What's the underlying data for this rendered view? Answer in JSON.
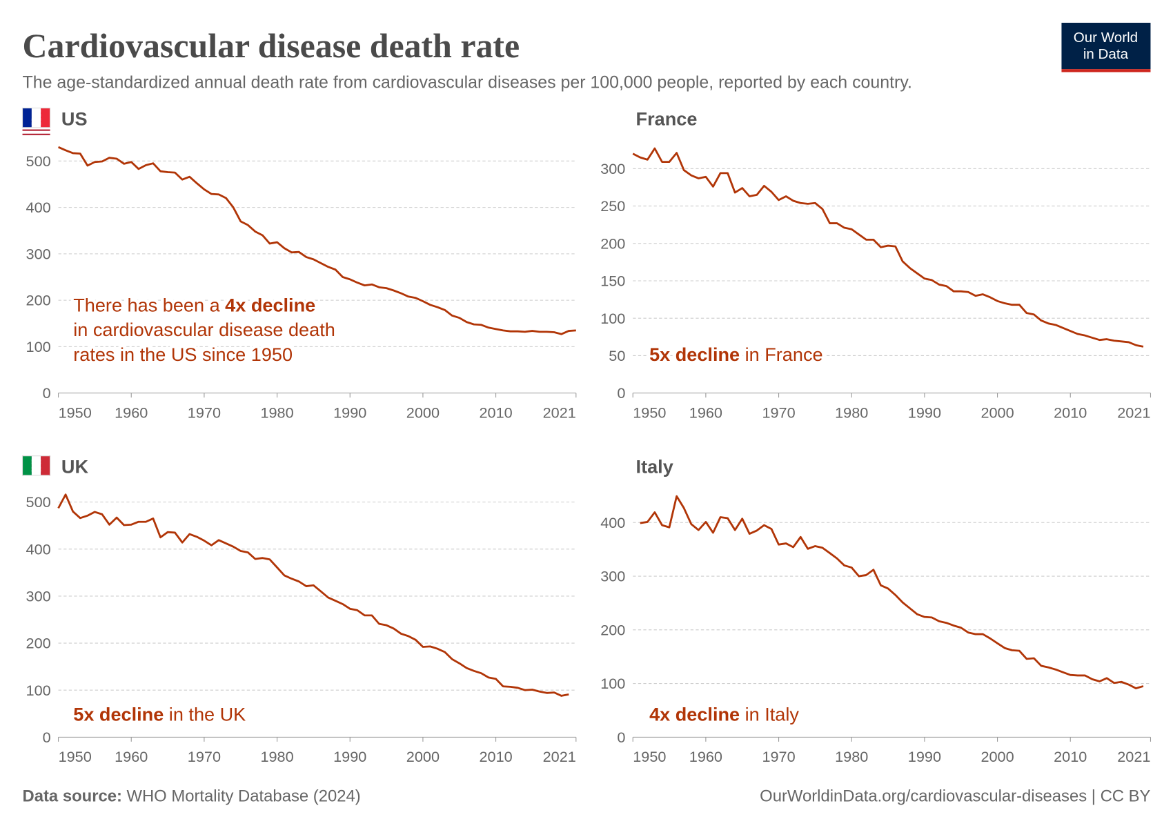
{
  "header": {
    "title": "Cardiovascular disease death rate",
    "subtitle": "The age-standardized annual death rate from cardiovascular diseases per 100,000 people, reported by each country.",
    "logo": [
      "Our World",
      "in Data"
    ]
  },
  "footer": {
    "source_label": "Data source:",
    "source": "WHO Mortality Database (2024)",
    "url": "OurWorldinData.org/cardiovascular-diseases | CC BY"
  },
  "chart_data": [
    {
      "type": "line",
      "title": "US",
      "color": "#b13507",
      "grid": true,
      "xlim": [
        1950,
        2021
      ],
      "xticks": [
        1950,
        1960,
        1970,
        1980,
        1990,
        2000,
        2010,
        2021
      ],
      "ylim": [
        0,
        540
      ],
      "yticks": [
        0,
        100,
        200,
        300,
        400,
        500
      ],
      "x": [
        1950,
        1951,
        1952,
        1953,
        1954,
        1955,
        1956,
        1957,
        1958,
        1959,
        1960,
        1961,
        1962,
        1963,
        1964,
        1965,
        1966,
        1967,
        1968,
        1969,
        1970,
        1971,
        1972,
        1973,
        1974,
        1975,
        1976,
        1977,
        1978,
        1979,
        1980,
        1981,
        1982,
        1983,
        1984,
        1985,
        1986,
        1987,
        1988,
        1989,
        1990,
        1991,
        1992,
        1993,
        1994,
        1995,
        1996,
        1997,
        1998,
        1999,
        2000,
        2001,
        2002,
        2003,
        2004,
        2005,
        2006,
        2007,
        2008,
        2009,
        2010,
        2011,
        2012,
        2013,
        2014,
        2015,
        2016,
        2017,
        2018,
        2019,
        2020,
        2021
      ],
      "values": [
        530,
        523,
        517,
        516,
        490,
        498,
        499,
        507,
        505,
        494,
        498,
        483,
        491,
        495,
        478,
        476,
        475,
        460,
        466,
        452,
        439,
        429,
        428,
        420,
        400,
        370,
        362,
        348,
        340,
        322,
        325,
        312,
        303,
        304,
        293,
        288,
        280,
        272,
        266,
        250,
        245,
        238,
        232,
        234,
        228,
        226,
        221,
        215,
        208,
        205,
        198,
        190,
        185,
        179,
        167,
        162,
        153,
        148,
        147,
        141,
        138,
        135,
        133,
        133,
        132,
        134,
        132,
        132,
        131,
        127,
        134,
        135
      ],
      "annotation": [
        [
          {
            "text": "There has been a ",
            "bold": false
          },
          {
            "text": "4x decline",
            "bold": true
          }
        ],
        [
          {
            "text": "in cardiovascular disease death",
            "bold": false
          }
        ],
        [
          {
            "text": "rates in the US since 1950",
            "bold": false
          }
        ]
      ]
    },
    {
      "type": "line",
      "title": "France",
      "color": "#b13507",
      "grid": true,
      "xlim": [
        1950,
        2021
      ],
      "xticks": [
        1950,
        1960,
        1970,
        1980,
        1990,
        2000,
        2010,
        2021
      ],
      "ylim": [
        0,
        330
      ],
      "yticks": [
        0,
        50,
        100,
        150,
        200,
        250,
        300
      ],
      "x": [
        1950,
        1951,
        1952,
        1953,
        1954,
        1955,
        1956,
        1957,
        1958,
        1959,
        1960,
        1961,
        1962,
        1963,
        1964,
        1965,
        1966,
        1967,
        1968,
        1969,
        1970,
        1971,
        1972,
        1973,
        1974,
        1975,
        1976,
        1977,
        1978,
        1979,
        1980,
        1981,
        1982,
        1983,
        1984,
        1985,
        1986,
        1987,
        1988,
        1989,
        1990,
        1991,
        1992,
        1993,
        1994,
        1995,
        1996,
        1997,
        1998,
        1999,
        2000,
        2001,
        2002,
        2003,
        2004,
        2005,
        2006,
        2007,
        2008,
        2009,
        2010,
        2011,
        2012,
        2013,
        2014,
        2015,
        2016,
        2017,
        2018,
        2019,
        2020
      ],
      "values": [
        320,
        315,
        312,
        327,
        309,
        309,
        321,
        298,
        291,
        287,
        289,
        276,
        294,
        294,
        268,
        274,
        263,
        265,
        277,
        269,
        258,
        263,
        257,
        254,
        253,
        254,
        246,
        227,
        227,
        221,
        219,
        212,
        205,
        205,
        195,
        197,
        196,
        176,
        167,
        160,
        153,
        151,
        145,
        143,
        136,
        136,
        135,
        130,
        132,
        128,
        123,
        120,
        118,
        118,
        107,
        105,
        97,
        93,
        91,
        87,
        83,
        79,
        77,
        74,
        71,
        72,
        70,
        69,
        68,
        64,
        62
      ],
      "annotation": [
        [
          {
            "text": "5x decline",
            "bold": true
          },
          {
            "text": " in France",
            "bold": false
          }
        ]
      ]
    },
    {
      "type": "line",
      "title": "UK",
      "color": "#b13507",
      "grid": true,
      "xlim": [
        1950,
        2021
      ],
      "xticks": [
        1950,
        1960,
        1970,
        1980,
        1990,
        2000,
        2010,
        2021
      ],
      "ylim": [
        0,
        525
      ],
      "yticks": [
        0,
        100,
        200,
        300,
        400,
        500
      ],
      "x": [
        1950,
        1951,
        1952,
        1953,
        1954,
        1955,
        1956,
        1957,
        1958,
        1959,
        1960,
        1961,
        1962,
        1963,
        1964,
        1965,
        1966,
        1967,
        1968,
        1969,
        1970,
        1971,
        1972,
        1973,
        1974,
        1975,
        1976,
        1977,
        1978,
        1979,
        1980,
        1981,
        1982,
        1983,
        1984,
        1985,
        1986,
        1987,
        1988,
        1989,
        1990,
        1991,
        1992,
        1993,
        1994,
        1995,
        1996,
        1997,
        1998,
        1999,
        2000,
        2001,
        2002,
        2003,
        2004,
        2005,
        2006,
        2007,
        2008,
        2009,
        2010,
        2011,
        2012,
        2013,
        2014,
        2015,
        2016,
        2017,
        2018,
        2019,
        2020
      ],
      "values": [
        487,
        516,
        480,
        466,
        471,
        479,
        474,
        452,
        467,
        451,
        452,
        458,
        458,
        465,
        425,
        436,
        435,
        414,
        432,
        426,
        418,
        408,
        419,
        412,
        405,
        396,
        393,
        379,
        381,
        378,
        361,
        344,
        337,
        331,
        321,
        323,
        310,
        297,
        290,
        283,
        273,
        270,
        259,
        259,
        241,
        238,
        231,
        220,
        215,
        207,
        192,
        193,
        188,
        181,
        166,
        157,
        147,
        141,
        136,
        127,
        124,
        108,
        107,
        105,
        100,
        101,
        97,
        94,
        95,
        88,
        91
      ],
      "annotation": [
        [
          {
            "text": "5x decline",
            "bold": true
          },
          {
            "text": " in the UK",
            "bold": false
          }
        ]
      ]
    },
    {
      "type": "line",
      "title": "Italy",
      "color": "#b13507",
      "grid": true,
      "xlim": [
        1950,
        2021
      ],
      "xticks": [
        1950,
        1960,
        1970,
        1980,
        1990,
        2000,
        2010,
        2021
      ],
      "ylim": [
        0,
        460
      ],
      "yticks": [
        0,
        100,
        200,
        300,
        400
      ],
      "x": [
        1951,
        1952,
        1953,
        1954,
        1955,
        1956,
        1957,
        1958,
        1959,
        1960,
        1961,
        1962,
        1963,
        1964,
        1965,
        1966,
        1967,
        1968,
        1969,
        1970,
        1971,
        1972,
        1973,
        1974,
        1975,
        1976,
        1977,
        1978,
        1979,
        1980,
        1981,
        1982,
        1983,
        1984,
        1985,
        1986,
        1987,
        1988,
        1989,
        1990,
        1991,
        1992,
        1993,
        1994,
        1995,
        1996,
        1997,
        1998,
        1999,
        2000,
        2001,
        2002,
        2003,
        2004,
        2005,
        2006,
        2007,
        2008,
        2009,
        2010,
        2011,
        2012,
        2013,
        2014,
        2015,
        2016,
        2017,
        2018,
        2019,
        2020
      ],
      "values": [
        399,
        401,
        419,
        395,
        391,
        449,
        427,
        397,
        386,
        401,
        381,
        410,
        408,
        386,
        407,
        379,
        385,
        395,
        388,
        359,
        361,
        354,
        373,
        351,
        356,
        353,
        343,
        333,
        320,
        316,
        300,
        302,
        312,
        283,
        277,
        265,
        251,
        240,
        229,
        224,
        223,
        216,
        213,
        208,
        204,
        195,
        192,
        192,
        184,
        175,
        166,
        162,
        161,
        146,
        147,
        133,
        130,
        126,
        121,
        116,
        115,
        115,
        108,
        104,
        110,
        101,
        103,
        98,
        91,
        95
      ],
      "annotation": [
        [
          {
            "text": "4x decline",
            "bold": true
          },
          {
            "text": " in Italy",
            "bold": false
          }
        ]
      ]
    }
  ]
}
